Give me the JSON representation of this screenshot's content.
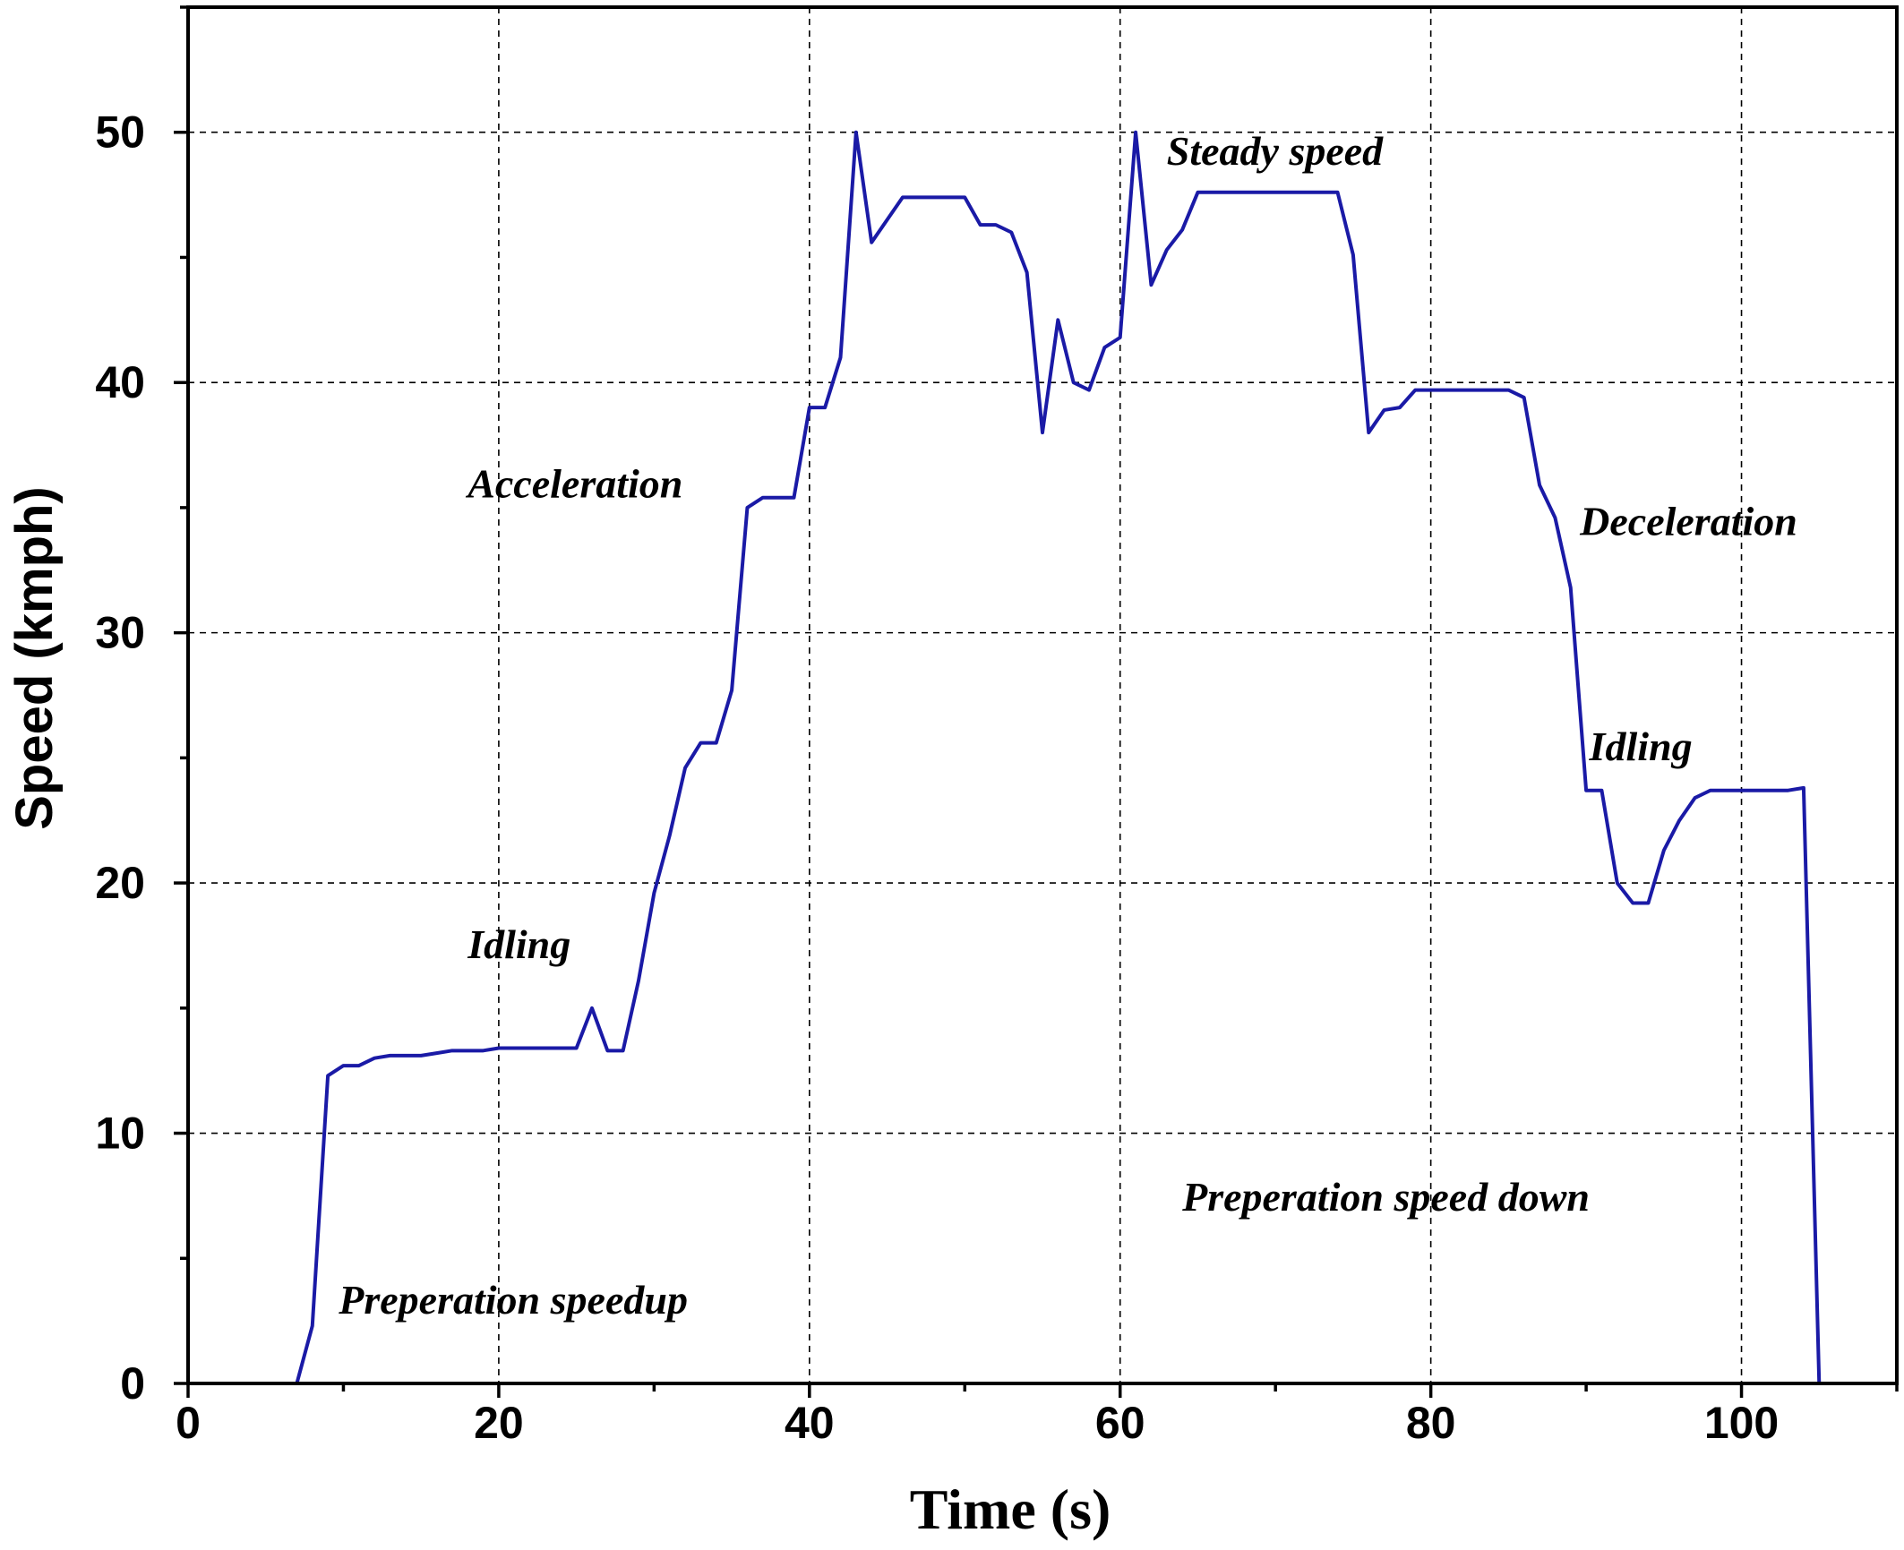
{
  "chart_data": {
    "type": "line",
    "xlabel": "Time (s)",
    "ylabel": "Speed (kmph)",
    "xlim": [
      0,
      110
    ],
    "ylim": [
      0,
      55
    ],
    "x_ticks": [
      0,
      20,
      40,
      60,
      80,
      100
    ],
    "y_ticks": [
      0,
      10,
      20,
      30,
      40,
      50
    ],
    "grid": true,
    "line_color": "#1a1aa6",
    "series": [
      {
        "x": [
          0,
          7,
          8,
          9,
          10,
          11,
          12,
          13,
          14,
          15,
          16,
          17,
          18,
          19,
          20,
          21,
          22,
          23,
          24,
          25,
          26,
          27,
          28,
          29,
          30,
          31,
          32,
          33,
          34,
          35,
          36,
          37,
          38,
          39,
          40,
          41,
          42,
          43,
          44,
          45,
          46,
          47,
          48,
          49,
          50,
          51,
          52,
          53,
          54,
          55,
          56,
          57,
          58,
          59,
          60,
          61,
          62,
          63,
          64,
          65,
          66,
          67,
          68,
          69,
          70,
          71,
          72,
          73,
          74,
          75,
          76,
          77,
          78,
          79,
          80,
          81,
          82,
          83,
          84,
          85,
          86,
          87,
          88,
          89,
          90,
          91,
          92,
          93,
          94,
          95,
          96,
          97,
          98,
          99,
          100,
          101,
          102,
          103,
          104,
          105,
          106,
          107
        ],
        "y": [
          0,
          0,
          2.3,
          12.3,
          12.7,
          12.7,
          13.0,
          13.1,
          13.1,
          13.1,
          13.2,
          13.3,
          13.3,
          13.3,
          13.4,
          13.4,
          13.4,
          13.4,
          13.4,
          13.4,
          15.0,
          13.3,
          13.3,
          16.1,
          19.6,
          21.9,
          24.6,
          25.6,
          25.6,
          27.7,
          35.0,
          35.4,
          35.4,
          35.4,
          39.0,
          39.0,
          41.0,
          50.0,
          45.6,
          46.5,
          47.4,
          47.4,
          47.4,
          47.4,
          47.4,
          46.3,
          46.3,
          46.0,
          44.4,
          38.0,
          42.5,
          40.0,
          39.7,
          41.4,
          41.8,
          50.0,
          43.9,
          45.3,
          46.1,
          47.6,
          47.6,
          47.6,
          47.6,
          47.6,
          47.6,
          47.6,
          47.6,
          47.6,
          47.6,
          45.1,
          38.0,
          38.9,
          39.0,
          39.7,
          39.7,
          39.7,
          39.7,
          39.7,
          39.7,
          39.7,
          39.4,
          35.9,
          34.6,
          31.8,
          23.7,
          23.7,
          20.0,
          19.2,
          19.2,
          21.3,
          22.5,
          23.4,
          23.7,
          23.7,
          23.7,
          23.7,
          23.7,
          23.7,
          23.8,
          0,
          0,
          0
        ]
      }
    ],
    "annotations": [
      {
        "text": "Steady speed",
        "x": 63,
        "y": 48.7
      },
      {
        "text": "Acceleration",
        "x": 18,
        "y": 35.4
      },
      {
        "text": "Deceleration",
        "x": 89.6,
        "y": 33.9
      },
      {
        "text": "Idling",
        "x": 90.2,
        "y": 24.9
      },
      {
        "text": "Idling",
        "x": 18,
        "y": 17.0
      },
      {
        "text": "Preperation speed down",
        "x": 64,
        "y": 6.9
      },
      {
        "text": "Preperation speedup",
        "x": 9.7,
        "y": 2.8
      }
    ]
  }
}
